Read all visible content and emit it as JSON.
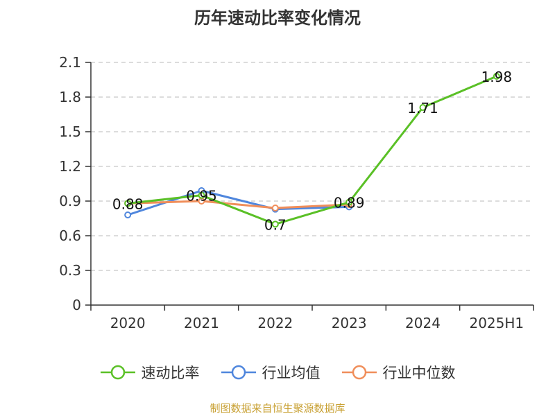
{
  "header": {
    "title": "历年速动比率变化情况"
  },
  "footer": {
    "source": "制图数据来自恒生聚源数据库",
    "source_color": "#C8A032"
  },
  "chart_data": {
    "type": "line",
    "title": "历年速动比率变化情况",
    "xlabel": "",
    "ylabel": "",
    "categories": [
      "2020",
      "2021",
      "2022",
      "2023",
      "2024",
      "2025H1"
    ],
    "y_ticks": [
      "0",
      "0.3",
      "0.6",
      "0.9",
      "1.2",
      "1.5",
      "1.8",
      "2.1"
    ],
    "ylim": [
      0,
      2.1
    ],
    "grid": true,
    "legend_position": "bottom",
    "series": [
      {
        "name": "速动比率",
        "color": "#5AC026",
        "values": [
          0.88,
          0.95,
          0.7,
          0.89,
          1.71,
          1.98
        ],
        "labels": [
          "0.88",
          "0.95",
          "0.7",
          "0.89",
          "1.71",
          "1.98"
        ]
      },
      {
        "name": "行业均值",
        "color": "#4F86DD",
        "values": [
          0.78,
          0.99,
          0.83,
          0.85,
          null,
          null
        ]
      },
      {
        "name": "行业中位数",
        "color": "#F08E5A",
        "values": [
          0.88,
          0.9,
          0.84,
          0.87,
          null,
          null
        ]
      }
    ]
  }
}
